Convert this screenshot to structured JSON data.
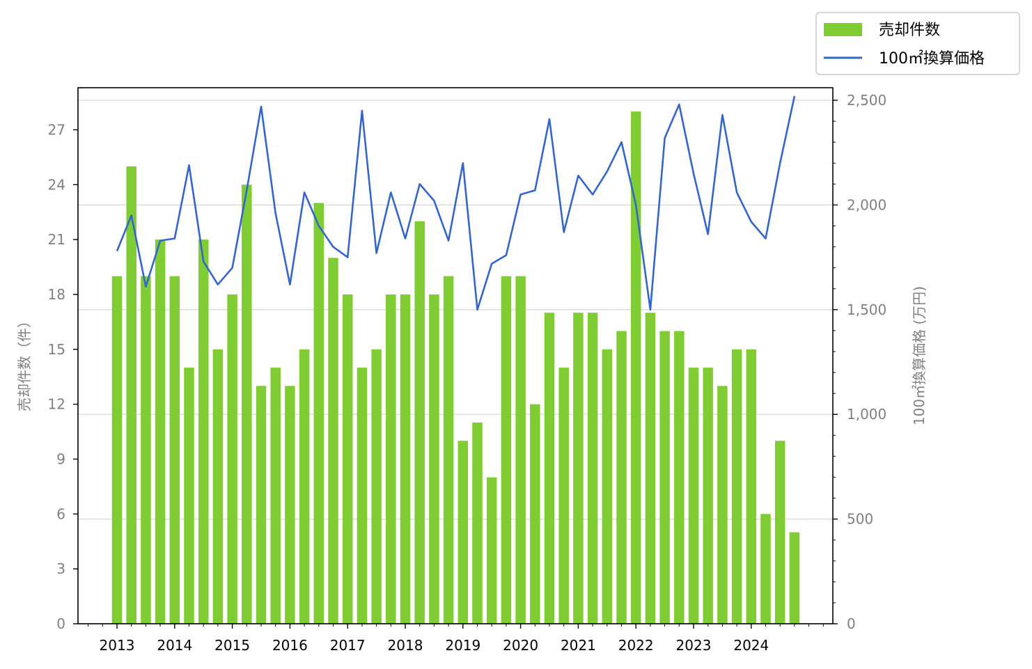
{
  "chart_data": {
    "type": "bar+line",
    "legend": [
      {
        "key": "bars",
        "label": "売却件数",
        "color": "#7fcc33"
      },
      {
        "key": "line",
        "label": "100㎡換算価格",
        "color": "#3366cc"
      }
    ],
    "legend_position": "top-right",
    "ylabel_left": "売却件数（件）",
    "ylabel_right": "100㎡換算価格 (万円)",
    "left_axis": {
      "min": 0,
      "max": 29.3,
      "ticks": [
        0,
        3,
        6,
        9,
        12,
        15,
        18,
        21,
        24,
        27
      ]
    },
    "right_axis": {
      "min": 0,
      "max": 2560,
      "ticks": [
        0,
        500,
        1000,
        1500,
        2000,
        2500
      ],
      "tick_labels": [
        "0",
        "500",
        "1,000",
        "1,500",
        "2,000",
        "2,500"
      ]
    },
    "x_axis": {
      "years": [
        "2013",
        "2014",
        "2015",
        "2016",
        "2017",
        "2018",
        "2019",
        "2020",
        "2021",
        "2022",
        "2023",
        "2024"
      ],
      "quarters_per_year": 4
    },
    "grid": "horizontal, aligned to right axis",
    "series": [
      {
        "name": "売却件数",
        "kind": "bar",
        "values": [
          19,
          25,
          19,
          21,
          19,
          14,
          21,
          15,
          18,
          24,
          13,
          14,
          13,
          15,
          23,
          20,
          18,
          14,
          15,
          18,
          18,
          22,
          18,
          19,
          10,
          11,
          8,
          19,
          19,
          12,
          17,
          14,
          17,
          17,
          15,
          16,
          28,
          17,
          16,
          16,
          14,
          14,
          13,
          15,
          15,
          6,
          10,
          5
        ]
      },
      {
        "name": "100㎡換算価格",
        "kind": "line",
        "values": [
          1780,
          1950,
          1610,
          1830,
          1840,
          2190,
          1730,
          1620,
          1700,
          2070,
          2470,
          1960,
          1620,
          2060,
          1900,
          1800,
          1750,
          2450,
          1770,
          2060,
          1840,
          2100,
          2020,
          1830,
          2200,
          1500,
          1720,
          1760,
          2050,
          2070,
          2410,
          1870,
          2140,
          2050,
          2160,
          2300,
          2000,
          1500,
          2320,
          2480,
          2150,
          1860,
          2430,
          2060,
          1920,
          1840,
          2200,
          2520
        ]
      }
    ]
  }
}
